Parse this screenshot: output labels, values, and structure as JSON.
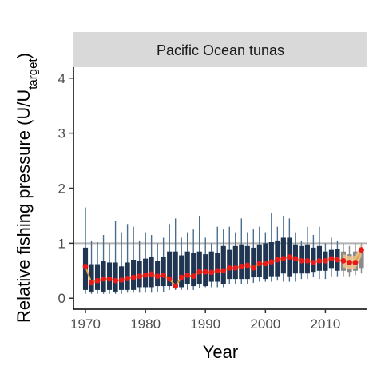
{
  "colors": {
    "bar_dark": "#1f3552",
    "bar_light": "#4a6d8c",
    "proj_bar": "#8a8a8a",
    "proj_band": "#f2c48c",
    "median_line": "#e8a23a",
    "point": "#e8191a",
    "ref_line": "#b3b3b3",
    "strip_bg": "#d9d9d9"
  },
  "chart_data": {
    "type": "bar",
    "facet_title": "Pacific Ocean tunas",
    "xlabel": "Year",
    "ylabel_main": "Relative fishing pressure (U/U",
    "ylabel_sub": "target",
    "ylabel_close": ")",
    "xlim": [
      1968,
      2017
    ],
    "ylim": [
      -0.2,
      4.2
    ],
    "x_ticks": [
      "1970",
      "1980",
      "1990",
      "2000",
      "2010"
    ],
    "y_ticks": [
      "0",
      "1",
      "2",
      "3",
      "4"
    ],
    "reference_line": 1,
    "grid": false,
    "years": [
      1970,
      1971,
      1972,
      1973,
      1974,
      1975,
      1976,
      1977,
      1978,
      1979,
      1980,
      1981,
      1982,
      1983,
      1984,
      1985,
      1986,
      1987,
      1988,
      1989,
      1990,
      1991,
      1992,
      1993,
      1994,
      1995,
      1996,
      1997,
      1998,
      1999,
      2000,
      2001,
      2002,
      2003,
      2004,
      2005,
      2006,
      2007,
      2008,
      2009,
      2010,
      2011,
      2012,
      2013,
      2014,
      2015,
      2016
    ],
    "box_low": [
      0.15,
      0.12,
      0.15,
      0.12,
      0.15,
      0.12,
      0.15,
      0.15,
      0.15,
      0.2,
      0.2,
      0.2,
      0.22,
      0.22,
      0.22,
      0.22,
      0.2,
      0.25,
      0.22,
      0.25,
      0.22,
      0.3,
      0.3,
      0.25,
      0.35,
      0.35,
      0.35,
      0.35,
      0.38,
      0.38,
      0.35,
      0.4,
      0.4,
      0.45,
      0.4,
      0.45,
      0.45,
      0.45,
      0.48,
      0.5,
      0.5,
      0.55,
      0.5,
      0.5,
      0.48,
      0.5,
      0.55
    ],
    "box_high": [
      0.92,
      0.62,
      0.62,
      0.68,
      0.65,
      0.65,
      0.58,
      0.65,
      0.7,
      0.68,
      0.72,
      0.75,
      0.68,
      0.75,
      0.85,
      0.85,
      0.78,
      0.85,
      0.82,
      0.85,
      0.8,
      0.85,
      0.82,
      0.95,
      0.88,
      0.95,
      0.98,
      0.95,
      0.92,
      0.98,
      1.0,
      1.02,
      1.05,
      1.1,
      1.1,
      0.98,
      0.95,
      0.98,
      0.92,
      0.95,
      0.85,
      0.88,
      0.9,
      0.85,
      0.8,
      0.85,
      0.88
    ],
    "whisker_low": [
      0.08,
      0.08,
      0.08,
      0.08,
      0.08,
      0.08,
      0.08,
      0.1,
      0.1,
      0.1,
      0.1,
      0.1,
      0.12,
      0.12,
      0.15,
      0.15,
      0.15,
      0.15,
      0.15,
      0.18,
      0.2,
      0.2,
      0.2,
      0.2,
      0.25,
      0.25,
      0.25,
      0.25,
      0.28,
      0.3,
      0.3,
      0.3,
      0.32,
      0.3,
      0.3,
      0.3,
      0.35,
      0.35,
      0.38,
      0.35,
      0.35,
      0.4,
      0.4,
      0.4,
      0.4,
      0.42,
      0.45
    ],
    "whisker_high": [
      1.65,
      1.05,
      1.02,
      1.15,
      1.0,
      1.4,
      1.2,
      1.35,
      1.3,
      1.05,
      1.2,
      1.15,
      1.0,
      1.1,
      1.35,
      1.45,
      1.1,
      1.2,
      1.25,
      1.5,
      1.1,
      1.0,
      1.3,
      1.25,
      1.3,
      1.2,
      1.45,
      1.2,
      1.25,
      1.3,
      1.2,
      1.55,
      1.3,
      1.5,
      1.45,
      1.2,
      1.05,
      1.3,
      1.15,
      1.3,
      1.0,
      1.1,
      1.05,
      1.0,
      0.95,
      1.0,
      1.0
    ],
    "median": [
      0.58,
      0.28,
      0.32,
      0.35,
      0.35,
      0.32,
      0.33,
      0.36,
      0.38,
      0.4,
      0.42,
      0.44,
      0.4,
      0.42,
      0.35,
      0.22,
      0.38,
      0.42,
      0.4,
      0.48,
      0.48,
      0.47,
      0.5,
      0.5,
      0.55,
      0.55,
      0.58,
      0.6,
      0.55,
      0.63,
      0.63,
      0.66,
      0.7,
      0.72,
      0.75,
      0.72,
      0.68,
      0.68,
      0.65,
      0.68,
      0.68,
      0.72,
      0.7,
      0.68,
      0.65,
      0.65,
      0.88
    ],
    "projected_from": 2013
  }
}
